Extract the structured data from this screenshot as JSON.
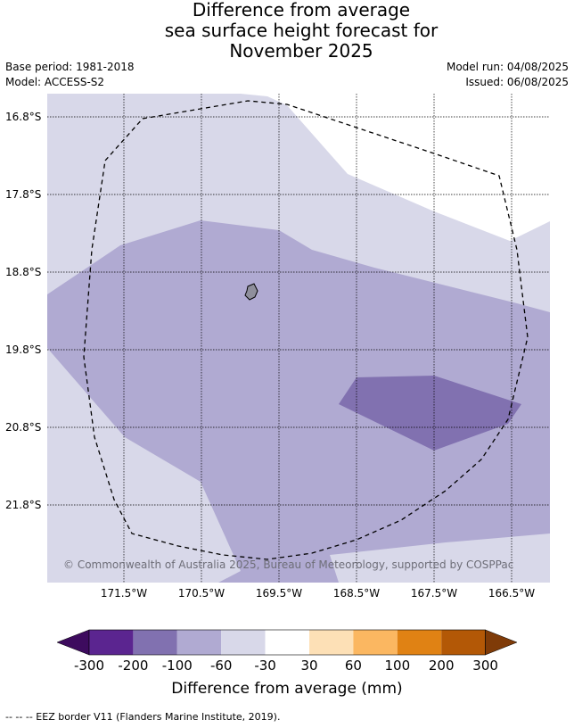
{
  "title_lines": [
    "Difference from average",
    "sea surface height forecast for",
    "November 2025"
  ],
  "base_period": "Base period: 1981-2018",
  "model": "Model: ACCESS-S2",
  "model_run": "Model run: 04/08/2025",
  "issued": "Issued: 06/08/2025",
  "lat_labels": [
    "16.8°S",
    "17.8°S",
    "18.8°S",
    "19.8°S",
    "20.8°S",
    "21.8°S"
  ],
  "lon_labels": [
    "171.5°W",
    "170.5°W",
    "169.5°W",
    "168.5°W",
    "167.5°W",
    "166.5°W"
  ],
  "copyright": "© Commonwealth of Australia 2025, Bureau of Meteorology, supported by COSPPac",
  "colorbar": {
    "label": "Difference from average (mm)",
    "ticks": [
      "-300",
      "-200",
      "-100",
      "-60",
      "-30",
      "30",
      "60",
      "100",
      "200",
      "300"
    ],
    "colors": [
      "#3d0b5e",
      "#5b2590",
      "#8171b0",
      "#b0aad2",
      "#d8d8e9",
      "#ffffff",
      "#fde0b6",
      "#fbb761",
      "#e08214",
      "#b35806",
      "#7f3b08"
    ]
  },
  "legend_note": "--  --  -- EEZ border V11 (Flanders Marine Institute, 2019)."
}
